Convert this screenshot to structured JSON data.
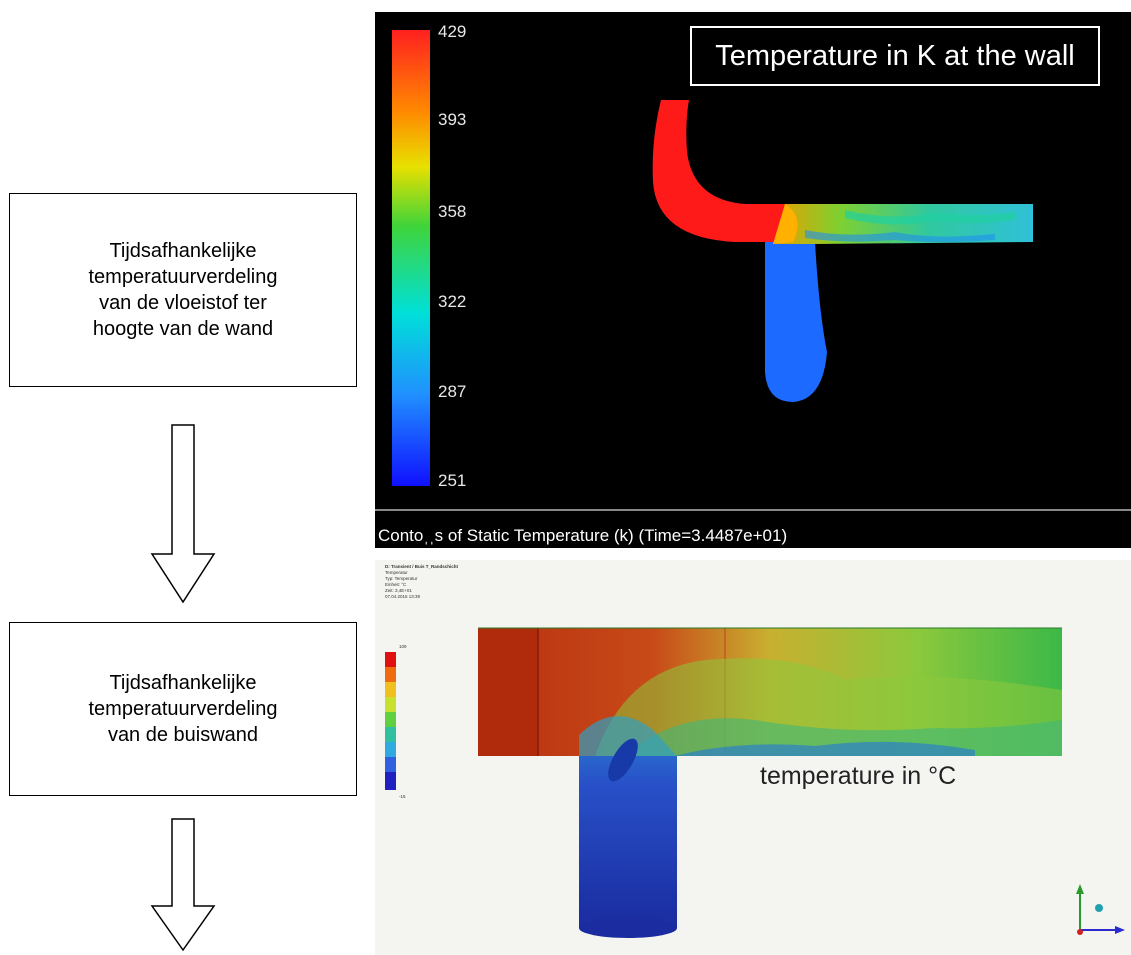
{
  "boxes": {
    "box1": "Tijdsafhankelijke\ntemperatuurverdeling\nvan de vloeistof ter\nhoogte van de wand",
    "box2": "Tijdsafhankelijke\ntemperatuurverdeling\nvan de buiswand"
  },
  "fluent": {
    "title": "Temperature  in K at the wall",
    "ticks": [
      "429",
      "393",
      "358",
      "322",
      "287",
      "251"
    ],
    "footer": "Contoˌˌs of Static Temperature (k)  (Time=3.4487e+01)"
  },
  "ansys": {
    "header": [
      "D: Transient / Buis T_Randschicht",
      "Temperatur",
      "Typ: Temperatur",
      "Einheit: °C",
      "Zeit: 3,4E+01",
      "07.04.2015 13:39"
    ],
    "legend_top": "109",
    "legend_bottom": "-15",
    "unit_label": "temperature in °C"
  }
}
